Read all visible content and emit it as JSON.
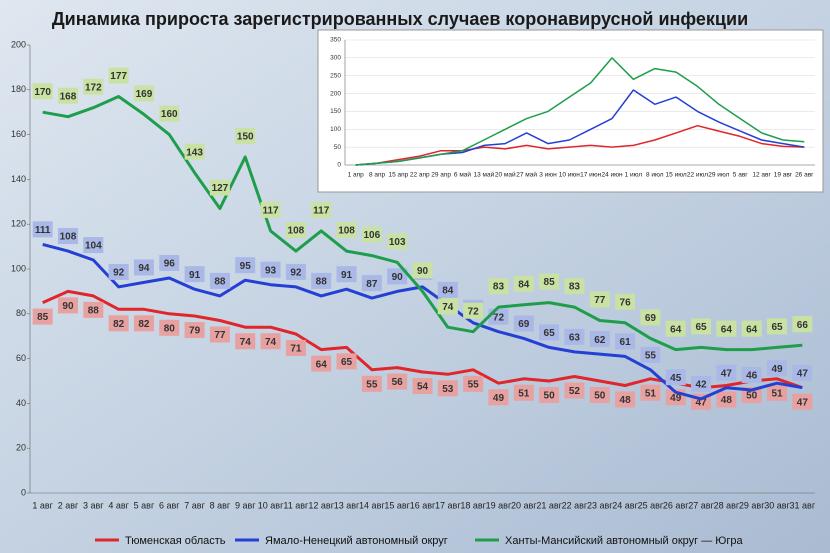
{
  "chart_data": [
    {
      "type": "line",
      "title": "Динамика прироста зарегистрированных случаев коронавирусной инфекции",
      "categories": [
        "1 авг",
        "2 авг",
        "3 авг",
        "4 авг",
        "5 авг",
        "6 авг",
        "7 авг",
        "8 авг",
        "9 авг",
        "10 авг",
        "11 авг",
        "12 авг",
        "13 авг",
        "14 авг",
        "15 авг",
        "16 авг",
        "17 авг",
        "18 авг",
        "19 авг",
        "20 авг",
        "21 авг",
        "22 авг",
        "23 авг",
        "24 авг",
        "25 авг",
        "26 авг",
        "27 авг",
        "28 авг",
        "29 авг",
        "30 авг",
        "31 авг"
      ],
      "series": [
        {
          "name": "Тюменская область",
          "color": "#e0262a",
          "label_color": "#e7a1a0",
          "values": [
            85,
            90,
            88,
            82,
            82,
            80,
            79,
            77,
            74,
            74,
            71,
            64,
            65,
            55,
            56,
            54,
            53,
            55,
            49,
            51,
            50,
            52,
            50,
            48,
            51,
            49,
            47,
            48,
            50,
            51,
            47
          ]
        },
        {
          "name": "Ямало-Ненецкий автономный округ",
          "color": "#2440d4",
          "label_color": "#a9b8e6",
          "values": [
            111,
            108,
            104,
            92,
            94,
            96,
            91,
            88,
            95,
            93,
            92,
            88,
            91,
            87,
            90,
            92,
            84,
            76,
            72,
            69,
            65,
            63,
            62,
            61,
            55,
            45,
            42,
            47,
            46,
            49,
            47
          ]
        },
        {
          "name": "Ханты-Мансийский автономный округ — Югра",
          "color": "#1e9e4a",
          "label_color": "#c9e2a3",
          "values": [
            170,
            168,
            172,
            177,
            169,
            160,
            143,
            127,
            150,
            117,
            108,
            117,
            108,
            106,
            103,
            90,
            74,
            72,
            83,
            84,
            85,
            83,
            77,
            76,
            69,
            64,
            65,
            64,
            64,
            65,
            66
          ]
        }
      ],
      "ylim": [
        0,
        200
      ],
      "yticks": [
        0,
        20,
        40,
        60,
        80,
        100,
        120,
        140,
        160,
        180,
        200
      ],
      "data_labels": true,
      "legend": "bottom"
    },
    {
      "type": "line",
      "categories": [
        "1 апр",
        "8 апр",
        "15 апр",
        "22 апр",
        "29 апр",
        "6 май",
        "13 май",
        "20 май",
        "27 май",
        "3 июн",
        "10 июн",
        "17 июн",
        "24 июн",
        "1 июл",
        "8 июл",
        "15 июл",
        "22 июл",
        "29 июл",
        "5 авг",
        "12 авг",
        "19 авг",
        "26 авг"
      ],
      "series": [
        {
          "color": "#e0262a",
          "values": [
            0,
            5,
            15,
            25,
            40,
            40,
            50,
            45,
            55,
            45,
            50,
            55,
            50,
            55,
            70,
            90,
            110,
            95,
            80,
            60,
            52,
            50
          ]
        },
        {
          "color": "#2440d4",
          "values": [
            0,
            5,
            10,
            20,
            30,
            35,
            55,
            60,
            90,
            60,
            70,
            100,
            130,
            210,
            170,
            190,
            150,
            120,
            95,
            70,
            60,
            50
          ]
        },
        {
          "color": "#1e9e4a",
          "values": [
            0,
            5,
            10,
            20,
            30,
            40,
            70,
            100,
            130,
            150,
            190,
            230,
            300,
            240,
            270,
            260,
            220,
            170,
            130,
            90,
            70,
            65
          ]
        }
      ],
      "ylim": [
        0,
        350
      ],
      "yticks": [
        0,
        50,
        100,
        150,
        200,
        250,
        300,
        350
      ],
      "grid": true
    }
  ]
}
